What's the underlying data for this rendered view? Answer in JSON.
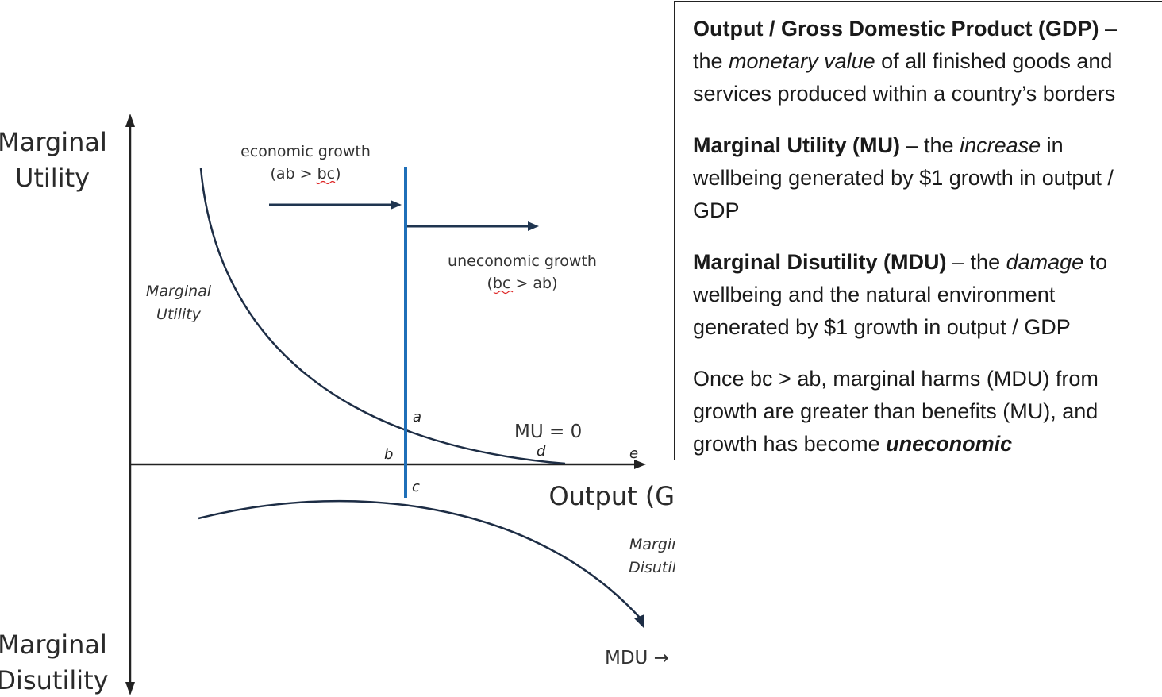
{
  "diagram": {
    "y_axis_top_label": [
      "Marginal",
      "Utility"
    ],
    "y_axis_bottom_label": [
      "Marginal",
      "Disutility"
    ],
    "x_axis_label": "Output (GDP)",
    "mu_curve_label": [
      "Marginal",
      "Utility"
    ],
    "mdu_curve_label": [
      "Marginal",
      "Disutility"
    ],
    "economic_growth_label": "economic growth",
    "economic_growth_condition": {
      "open": "(ab > ",
      "squiggly": "bc",
      "close": ")"
    },
    "uneconomic_growth_label": "uneconomic growth",
    "uneconomic_growth_condition": {
      "open": "(",
      "squiggly": "bc",
      "close": " > ab)"
    },
    "mu_zero_label": "MU = 0",
    "mdu_infinity_label": "MDU → ∞",
    "points": {
      "a": "a",
      "b": "b",
      "c": "c",
      "d": "d",
      "e": "e"
    },
    "colors": {
      "threshold_line": "#1f6fb8",
      "arrows": "#1f3550",
      "curves": "#1d2d45",
      "axes": "#222222"
    }
  },
  "definitions": {
    "gdp": {
      "term": "Output / Gross Domestic Product (GDP)",
      "sep": " – ",
      "pre": "the ",
      "emph": "monetary value",
      "post": " of all finished goods and services produced within a country’s borders"
    },
    "mu": {
      "term": "Marginal Utility (MU)",
      "sep": " – ",
      "pre": "the ",
      "emph": "increase",
      "post": " in wellbeing generated by $1 growth in output / GDP"
    },
    "mdu": {
      "term": "Marginal Disutility (MDU)",
      "sep": " – ",
      "pre": "the ",
      "emph": "damage",
      "post": " to wellbeing and the natural environment generated by $1 growth in output / GDP"
    },
    "conclusion": {
      "text": "Once bc > ab, marginal harms (MDU) from growth are greater than benefits (MU), and growth has become ",
      "emph": "uneconomic"
    }
  }
}
